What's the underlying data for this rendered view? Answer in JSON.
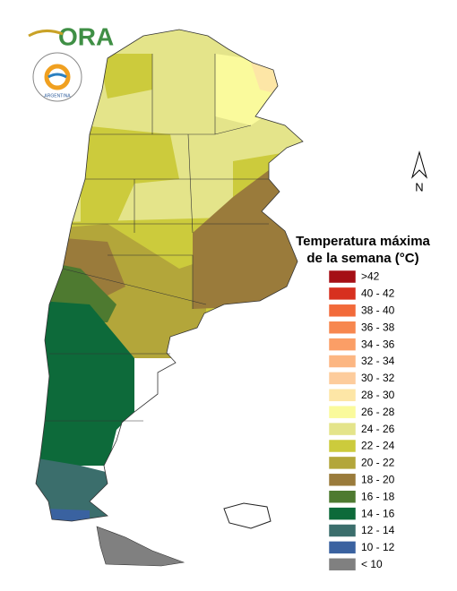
{
  "logo": {
    "text": "ORA",
    "seal_text": "ARGENTINA"
  },
  "north_arrow": {
    "label": "N"
  },
  "legend": {
    "title": [
      "Temperatura máxima",
      "de la semana (°C)"
    ],
    "items": [
      {
        "label": ">42",
        "color": "#a50f15"
      },
      {
        "label": "40 - 42",
        "color": "#d7301f"
      },
      {
        "label": "38 - 40",
        "color": "#f26a3a"
      },
      {
        "label": "36 - 38",
        "color": "#f7874f"
      },
      {
        "label": "34 - 36",
        "color": "#fb9e66"
      },
      {
        "label": "32 - 34",
        "color": "#fcb682"
      },
      {
        "label": "30 - 32",
        "color": "#fdcc9c"
      },
      {
        "label": "28 - 30",
        "color": "#fde6a6"
      },
      {
        "label": "26 - 28",
        "color": "#fafa9c"
      },
      {
        "label": "24 - 26",
        "color": "#e4e48a"
      },
      {
        "label": "22 - 24",
        "color": "#cccb3c"
      },
      {
        "label": "20 - 22",
        "color": "#b3a63a"
      },
      {
        "label": "18 - 20",
        "color": "#9a7b3b"
      },
      {
        "label": "16 - 18",
        "color": "#4e7a30"
      },
      {
        "label": "14 - 16",
        "color": "#0d6a3a"
      },
      {
        "label": "12 - 14",
        "color": "#3b6e6c"
      },
      {
        "label": "10 - 12",
        "color": "#3a62a0"
      },
      {
        "label": "< 10",
        "color": "#808080"
      }
    ]
  }
}
